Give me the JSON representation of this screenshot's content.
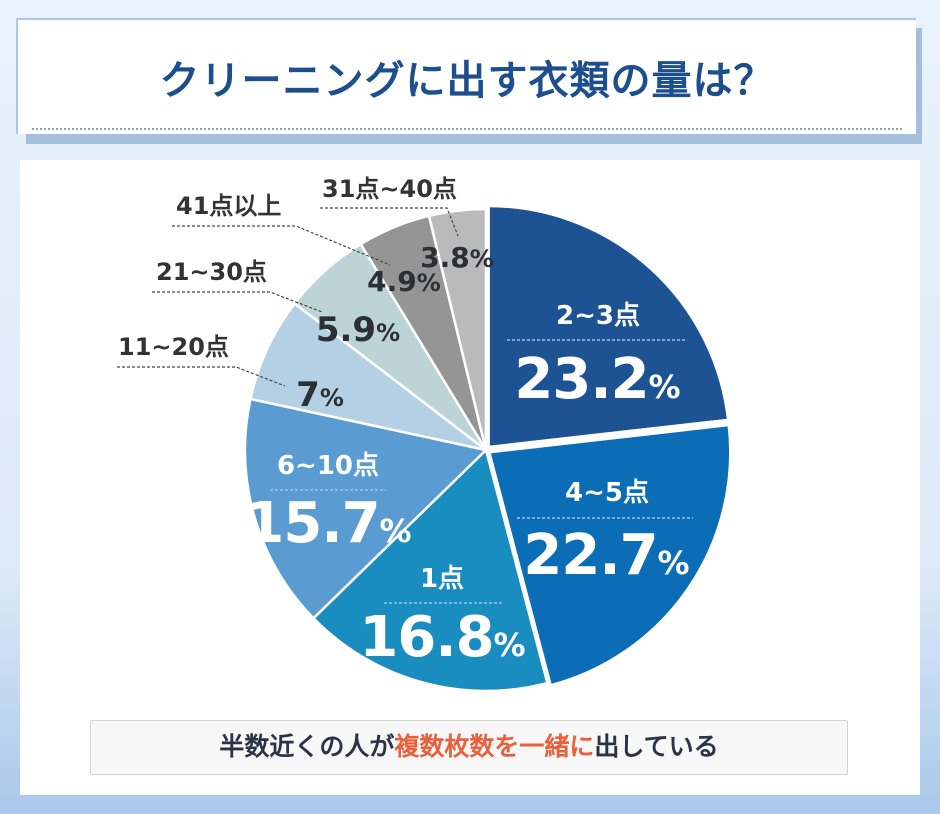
{
  "title": "クリーニングに出す衣類の量は？",
  "chart_data": {
    "type": "pie",
    "title": "クリーニングに出す衣類の量は？",
    "start": "top",
    "direction": "clockwise",
    "unit": "%",
    "slices": [
      {
        "label": "2~3点",
        "value": 23.2,
        "color": "#1d5393"
      },
      {
        "label": "4~5点",
        "value": 22.7,
        "color": "#0a6db6"
      },
      {
        "label": "1点",
        "value": 16.8,
        "color": "#1a8dc0"
      },
      {
        "label": "6~10点",
        "value": 15.7,
        "color": "#5a9bd1"
      },
      {
        "label": "11~20点",
        "value": 7,
        "color": "#b3d0e4"
      },
      {
        "label": "21~30点",
        "value": 5.9,
        "color": "#bdd4d6"
      },
      {
        "label": "41点以上",
        "value": 4.9,
        "color": "#959595"
      },
      {
        "label": "31点~40点",
        "value": 3.8,
        "color": "#bababa"
      }
    ]
  },
  "summary": {
    "before": "半数近くの人が",
    "highlight": "複数枚数を一緒に",
    "after": "出している",
    "highlight_color": "#e8603c"
  }
}
